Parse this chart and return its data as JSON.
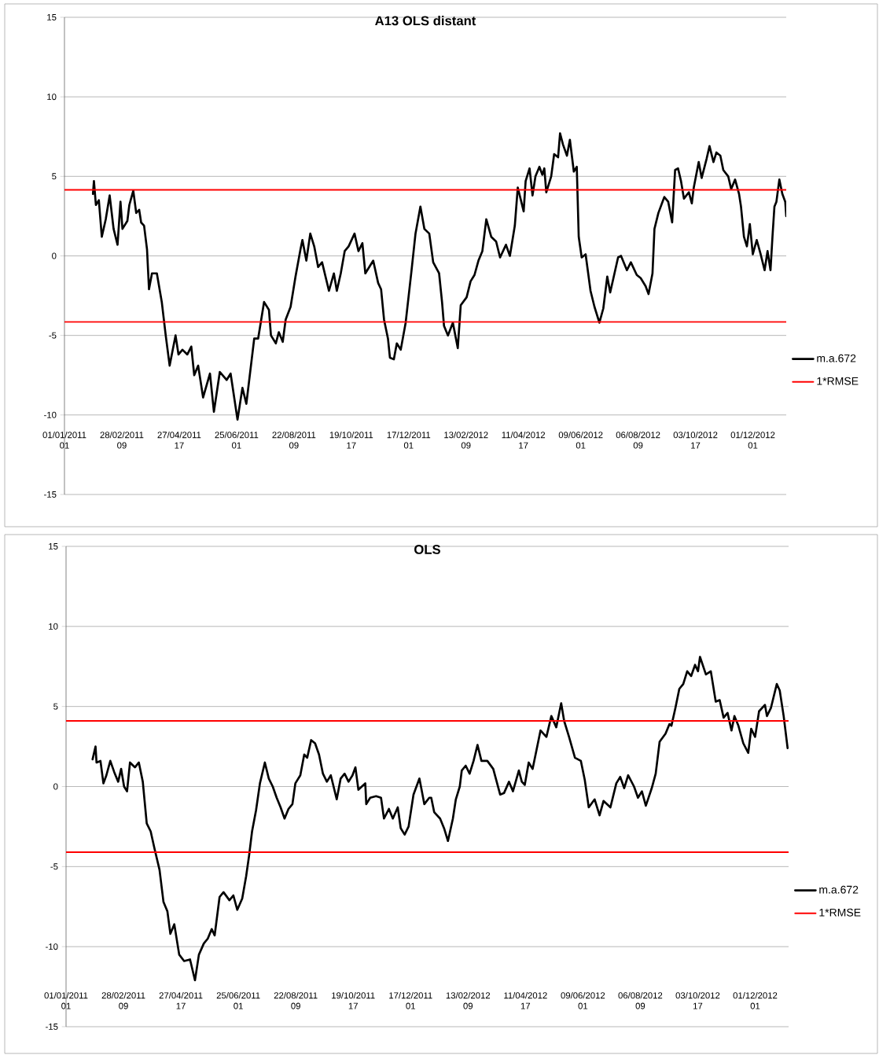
{
  "chart_data": [
    {
      "type": "line",
      "title": "A13 OLS distant",
      "x": [
        "2011-01-30",
        "2011-01-31",
        "2011-02-02",
        "2011-02-05",
        "2011-02-08",
        "2011-02-12",
        "2011-02-16",
        "2011-02-20",
        "2011-02-24",
        "2011-02-27",
        "2011-03-01",
        "2011-03-06",
        "2011-03-08",
        "2011-03-12",
        "2011-03-15",
        "2011-03-18",
        "2011-03-20",
        "2011-03-23",
        "2011-03-26",
        "2011-03-28",
        "2011-03-31",
        "2011-04-05",
        "2011-04-10",
        "2011-04-14",
        "2011-04-18",
        "2011-04-24",
        "2011-04-27",
        "2011-05-01",
        "2011-05-06",
        "2011-05-10",
        "2011-05-13",
        "2011-05-17",
        "2011-05-22",
        "2011-05-29",
        "2011-06-02",
        "2011-06-08",
        "2011-06-15",
        "2011-06-19",
        "2011-06-26",
        "2011-07-01",
        "2011-07-05",
        "2011-07-13",
        "2011-07-17",
        "2011-07-23",
        "2011-07-28",
        "2011-07-30",
        "2011-08-04",
        "2011-08-07",
        "2011-08-11",
        "2011-08-14",
        "2011-08-19",
        "2011-08-24",
        "2011-08-29",
        "2011-08-31",
        "2011-09-04",
        "2011-09-08",
        "2011-09-12",
        "2011-09-16",
        "2011-09-20",
        "2011-09-27",
        "2011-10-02",
        "2011-10-05",
        "2011-10-09",
        "2011-10-13",
        "2011-10-17",
        "2011-10-23",
        "2011-10-27",
        "2011-10-31",
        "2011-11-03",
        "2011-11-11",
        "2011-11-16",
        "2011-11-19",
        "2011-11-22",
        "2011-11-26",
        "2011-11-28",
        "2011-12-02",
        "2011-12-05",
        "2011-12-09",
        "2011-12-14",
        "2011-12-20",
        "2011-12-24",
        "2011-12-29",
        "2012-01-02",
        "2012-01-07",
        "2012-01-11",
        "2012-01-17",
        "2012-01-20",
        "2012-01-22",
        "2012-01-26",
        "2012-01-31",
        "2012-02-05",
        "2012-02-08",
        "2012-02-14",
        "2012-02-18",
        "2012-02-22",
        "2012-02-26",
        "2012-03-01",
        "2012-03-05",
        "2012-03-10",
        "2012-03-15",
        "2012-03-19",
        "2012-03-25",
        "2012-03-29",
        "2012-04-03",
        "2012-04-06",
        "2012-04-12",
        "2012-04-14",
        "2012-04-18",
        "2012-04-21",
        "2012-04-24",
        "2012-04-28",
        "2012-05-01",
        "2012-05-03",
        "2012-05-05",
        "2012-05-10",
        "2012-05-13",
        "2012-05-17",
        "2012-05-19",
        "2012-05-22",
        "2012-05-26",
        "2012-05-29",
        "2012-06-02",
        "2012-06-05",
        "2012-06-07",
        "2012-06-10",
        "2012-06-14",
        "2012-06-19",
        "2012-06-23",
        "2012-06-28",
        "2012-07-02",
        "2012-07-06",
        "2012-07-09",
        "2012-07-17",
        "2012-07-20",
        "2012-07-26",
        "2012-07-30",
        "2012-08-05",
        "2012-08-09",
        "2012-08-14",
        "2012-08-17",
        "2012-08-21",
        "2012-08-23",
        "2012-08-27",
        "2012-09-02",
        "2012-09-06",
        "2012-09-10",
        "2012-09-13",
        "2012-09-16",
        "2012-09-19",
        "2012-09-22",
        "2012-09-27",
        "2012-09-30",
        "2012-10-02",
        "2012-10-07",
        "2012-10-10",
        "2012-10-15",
        "2012-10-18",
        "2012-10-22",
        "2012-10-25",
        "2012-10-29",
        "2012-11-01",
        "2012-11-06",
        "2012-11-09",
        "2012-11-13",
        "2012-11-17",
        "2012-11-19",
        "2012-11-22",
        "2012-11-25",
        "2012-11-28",
        "2012-12-01",
        "2012-12-05",
        "2012-12-09",
        "2012-12-13",
        "2012-12-16",
        "2012-12-19",
        "2012-12-21",
        "2012-12-23",
        "2012-12-25",
        "2012-12-28",
        "2012-12-31",
        "2013-01-03",
        "2013-01-04"
      ],
      "series": [
        {
          "name": "m.a.672",
          "color": "#000000",
          "values": [
            3.9,
            4.7,
            3.2,
            3.5,
            1.2,
            2.3,
            3.8,
            1.7,
            0.7,
            3.4,
            1.7,
            2.2,
            3.2,
            4.1,
            2.7,
            2.9,
            2.1,
            1.9,
            0.4,
            -2.1,
            -1.1,
            -1.1,
            -2.9,
            -5.0,
            -6.9,
            -5.0,
            -6.2,
            -5.9,
            -6.2,
            -5.7,
            -7.5,
            -6.9,
            -8.9,
            -7.4,
            -9.8,
            -7.3,
            -7.8,
            -7.4,
            -10.3,
            -8.3,
            -9.3,
            -5.2,
            -5.2,
            -2.9,
            -3.4,
            -5.0,
            -5.5,
            -4.8,
            -5.4,
            -4.0,
            -3.2,
            -1.3,
            0.4,
            1.0,
            -0.3,
            1.4,
            0.6,
            -0.7,
            -0.4,
            -2.2,
            -1.1,
            -2.2,
            -1.1,
            0.3,
            0.6,
            1.4,
            0.3,
            0.8,
            -1.1,
            -0.3,
            -1.7,
            -2.1,
            -4.0,
            -5.2,
            -6.4,
            -6.5,
            -5.5,
            -5.9,
            -4.2,
            -0.9,
            1.4,
            3.1,
            1.7,
            1.4,
            -0.4,
            -1.1,
            -2.9,
            -4.4,
            -5.0,
            -4.2,
            -5.8,
            -3.1,
            -2.6,
            -1.6,
            -1.2,
            -0.3,
            0.3,
            2.3,
            1.2,
            0.9,
            -0.1,
            0.7,
            0.0,
            1.9,
            4.3,
            2.8,
            4.7,
            5.5,
            3.8,
            5.0,
            5.6,
            5.1,
            5.5,
            4.0,
            5.0,
            6.4,
            6.2,
            7.7,
            7.0,
            6.3,
            7.3,
            5.3,
            5.6,
            1.2,
            -0.1,
            0.1,
            -2.2,
            -3.2,
            -4.2,
            -3.3,
            -1.3,
            -2.3,
            -0.1,
            0.0,
            -0.9,
            -0.4,
            -1.2,
            -1.4,
            -1.9,
            -2.4,
            -1.1,
            1.7,
            2.7,
            3.7,
            3.4,
            2.1,
            5.4,
            5.5,
            4.7,
            3.6,
            4.0,
            3.3,
            4.3,
            5.9,
            4.9,
            6.1,
            6.9,
            5.9,
            6.5,
            6.3,
            5.4,
            5.0,
            4.2,
            4.8,
            3.9,
            3.1,
            1.2,
            0.6,
            2.0,
            0.1,
            1.0,
            0.1,
            -0.9,
            0.3,
            -0.9,
            1.2,
            3.1,
            3.4,
            4.8,
            3.9,
            3.4,
            2.5
          ]
        }
      ],
      "ref_lines": [
        {
          "axis": "y",
          "value": 4.15,
          "label": "1*RMSE",
          "color": "#ff0000"
        },
        {
          "axis": "y",
          "value": -4.15,
          "color": "#ff0000"
        }
      ],
      "xlim": [
        "2011-01-01T01:00",
        "2013-01-04T00:00"
      ],
      "xticks": [
        {
          "value": "2011-01-01T01:00",
          "label": "01/01/2011 01"
        },
        {
          "value": "2011-02-28T09:00",
          "label": "28/02/2011 09"
        },
        {
          "value": "2011-04-27T17:00",
          "label": "27/04/2011 17"
        },
        {
          "value": "2011-06-25T01:00",
          "label": "25/06/2011 01"
        },
        {
          "value": "2011-08-22T09:00",
          "label": "22/08/2011 09"
        },
        {
          "value": "2011-10-19T17:00",
          "label": "19/10/2011 17"
        },
        {
          "value": "2011-12-17T01:00",
          "label": "17/12/2011 01"
        },
        {
          "value": "2012-02-13T09:00",
          "label": "13/02/2012 09"
        },
        {
          "value": "2012-04-11T17:00",
          "label": "11/04/2012 17"
        },
        {
          "value": "2012-06-09T01:00",
          "label": "09/06/2012 01"
        },
        {
          "value": "2012-08-06T09:00",
          "label": "06/08/2012 09"
        },
        {
          "value": "2012-10-03T17:00",
          "label": "03/10/2012 17"
        },
        {
          "value": "2012-12-01T01:00",
          "label": "01/12/2012 01"
        }
      ],
      "ylim": [
        -15,
        15
      ],
      "yticks": [
        -15,
        -10,
        -5,
        0,
        5,
        10,
        15
      ],
      "grid": "y",
      "legend": "right"
    },
    {
      "type": "line",
      "title": "OLS",
      "x": [
        "2011-01-28",
        "2011-01-31",
        "2011-02-01",
        "2011-02-05",
        "2011-02-08",
        "2011-02-11",
        "2011-02-15",
        "2011-02-19",
        "2011-02-23",
        "2011-02-26",
        "2011-03-01",
        "2011-03-04",
        "2011-03-07",
        "2011-03-12",
        "2011-03-16",
        "2011-03-20",
        "2011-03-24",
        "2011-03-28",
        "2011-04-01",
        "2011-04-06",
        "2011-04-10",
        "2011-04-14",
        "2011-04-17",
        "2011-04-21",
        "2011-04-26",
        "2011-05-01",
        "2011-05-07",
        "2011-05-12",
        "2011-05-16",
        "2011-05-21",
        "2011-05-25",
        "2011-05-29",
        "2011-06-01",
        "2011-06-06",
        "2011-06-10",
        "2011-06-16",
        "2011-06-20",
        "2011-06-24",
        "2011-06-29",
        "2011-07-03",
        "2011-07-06",
        "2011-07-09",
        "2011-07-13",
        "2011-07-17",
        "2011-07-22",
        "2011-07-26",
        "2011-07-30",
        "2011-08-03",
        "2011-08-07",
        "2011-08-11",
        "2011-08-15",
        "2011-08-19",
        "2011-08-22",
        "2011-08-27",
        "2011-08-31",
        "2011-09-03",
        "2011-09-07",
        "2011-09-11",
        "2011-09-15",
        "2011-09-19",
        "2011-09-23",
        "2011-09-27",
        "2011-10-03",
        "2011-10-07",
        "2011-10-11",
        "2011-10-15",
        "2011-10-19",
        "2011-10-22",
        "2011-10-25",
        "2011-11-01",
        "2011-11-02",
        "2011-11-06",
        "2011-11-12",
        "2011-11-17",
        "2011-11-20",
        "2011-11-25",
        "2011-11-29",
        "2011-12-04",
        "2011-12-07",
        "2011-12-11",
        "2011-12-15",
        "2011-12-20",
        "2011-12-26",
        "2011-12-31",
        "2012-01-05",
        "2012-01-07",
        "2012-01-10",
        "2012-01-16",
        "2012-01-20",
        "2012-01-24",
        "2012-01-29",
        "2012-02-01",
        "2012-02-05",
        "2012-02-07",
        "2012-02-11",
        "2012-02-15",
        "2012-02-19",
        "2012-02-23",
        "2012-02-27",
        "2012-03-04",
        "2012-03-10",
        "2012-03-17",
        "2012-03-21",
        "2012-03-26",
        "2012-03-30",
        "2012-04-05",
        "2012-04-08",
        "2012-04-11",
        "2012-04-15",
        "2012-04-19",
        "2012-04-23",
        "2012-04-27",
        "2012-05-03",
        "2012-05-08",
        "2012-05-13",
        "2012-05-16",
        "2012-05-18",
        "2012-05-21",
        "2012-05-26",
        "2012-06-01",
        "2012-06-07",
        "2012-06-11",
        "2012-06-15",
        "2012-06-21",
        "2012-06-26",
        "2012-06-30",
        "2012-07-07",
        "2012-07-13",
        "2012-07-17",
        "2012-07-21",
        "2012-07-25",
        "2012-07-31",
        "2012-08-04",
        "2012-08-08",
        "2012-08-12",
        "2012-08-18",
        "2012-08-22",
        "2012-08-26",
        "2012-09-01",
        "2012-09-05",
        "2012-09-07",
        "2012-09-11",
        "2012-09-15",
        "2012-09-19",
        "2012-09-23",
        "2012-09-27",
        "2012-10-01",
        "2012-10-04",
        "2012-10-06",
        "2012-10-12",
        "2012-10-17",
        "2012-10-22",
        "2012-10-26",
        "2012-10-30",
        "2012-11-03",
        "2012-11-07",
        "2012-11-10",
        "2012-11-14",
        "2012-11-19",
        "2012-11-24",
        "2012-11-27",
        "2012-12-01",
        "2012-12-05",
        "2012-12-11",
        "2012-12-13",
        "2012-12-17",
        "2012-12-23",
        "2012-12-26",
        "2012-12-30",
        "2013-01-03"
      ],
      "series": [
        {
          "name": "m.a.672",
          "color": "#000000",
          "values": [
            1.7,
            2.5,
            1.5,
            1.6,
            0.2,
            0.7,
            1.6,
            0.9,
            0.3,
            1.1,
            0.0,
            -0.3,
            1.5,
            1.2,
            1.5,
            0.3,
            -2.3,
            -2.8,
            -3.9,
            -5.2,
            -7.2,
            -7.8,
            -9.2,
            -8.6,
            -10.5,
            -10.9,
            -10.8,
            -12.1,
            -10.5,
            -9.8,
            -9.5,
            -8.9,
            -9.3,
            -6.9,
            -6.6,
            -7.1,
            -6.8,
            -7.7,
            -7.0,
            -5.6,
            -4.3,
            -2.8,
            -1.5,
            0.2,
            1.5,
            0.5,
            0.0,
            -0.7,
            -1.3,
            -2.0,
            -1.4,
            -1.1,
            0.2,
            0.7,
            2.0,
            1.8,
            2.9,
            2.7,
            2.0,
            0.8,
            0.3,
            0.7,
            -0.8,
            0.5,
            0.8,
            0.3,
            0.7,
            1.2,
            -0.2,
            0.2,
            -1.1,
            -0.7,
            -0.6,
            -0.7,
            -2.0,
            -1.4,
            -2.0,
            -1.3,
            -2.6,
            -3.0,
            -2.5,
            -0.5,
            0.5,
            -1.1,
            -0.7,
            -0.7,
            -1.6,
            -2.0,
            -2.6,
            -3.4,
            -2.0,
            -0.8,
            0.0,
            1.0,
            1.3,
            0.8,
            1.6,
            2.6,
            1.6,
            1.6,
            1.1,
            -0.5,
            -0.4,
            0.3,
            -0.3,
            1.0,
            0.3,
            0.1,
            1.5,
            1.1,
            2.3,
            3.5,
            3.1,
            4.4,
            3.7,
            4.6,
            5.2,
            4.1,
            3.1,
            1.8,
            1.6,
            0.4,
            -1.3,
            -0.8,
            -1.8,
            -0.9,
            -1.3,
            0.2,
            0.6,
            -0.1,
            0.7,
            0.0,
            -0.7,
            -0.3,
            -1.2,
            -0.1,
            0.8,
            2.8,
            3.3,
            3.9,
            3.8,
            4.9,
            6.1,
            6.4,
            7.2,
            6.9,
            7.6,
            7.2,
            8.1,
            7.0,
            7.2,
            5.3,
            5.4,
            4.3,
            4.6,
            3.5,
            4.4,
            3.8,
            2.7,
            2.1,
            3.6,
            3.1,
            4.7,
            5.1,
            4.4,
            4.9,
            6.4,
            6.0,
            4.4,
            2.4
          ]
        }
      ],
      "ref_lines": [
        {
          "axis": "y",
          "value": 4.1,
          "label": "1*RMSE",
          "color": "#ff0000"
        },
        {
          "axis": "y",
          "value": -4.1,
          "color": "#ff0000"
        }
      ],
      "xlim": [
        "2011-01-01T01:00",
        "2013-01-04T00:00"
      ],
      "xticks": [
        {
          "value": "2011-01-01T01:00",
          "label": "01/01/2011 01"
        },
        {
          "value": "2011-02-28T09:00",
          "label": "28/02/2011 09"
        },
        {
          "value": "2011-04-27T17:00",
          "label": "27/04/2011 17"
        },
        {
          "value": "2011-06-25T01:00",
          "label": "25/06/2011 01"
        },
        {
          "value": "2011-08-22T09:00",
          "label": "22/08/2011 09"
        },
        {
          "value": "2011-10-19T17:00",
          "label": "19/10/2011 17"
        },
        {
          "value": "2011-12-17T01:00",
          "label": "17/12/2011 01"
        },
        {
          "value": "2012-02-13T09:00",
          "label": "13/02/2012 09"
        },
        {
          "value": "2012-04-11T17:00",
          "label": "11/04/2012 17"
        },
        {
          "value": "2012-06-09T01:00",
          "label": "09/06/2012 01"
        },
        {
          "value": "2012-08-06T09:00",
          "label": "06/08/2012 09"
        },
        {
          "value": "2012-10-03T17:00",
          "label": "03/10/2012 17"
        },
        {
          "value": "2012-12-01T01:00",
          "label": "01/12/2012 01"
        }
      ],
      "ylim": [
        -15,
        15
      ],
      "yticks": [
        -15,
        -10,
        -5,
        0,
        5,
        10,
        15
      ],
      "grid": "y",
      "legend": "right"
    }
  ]
}
